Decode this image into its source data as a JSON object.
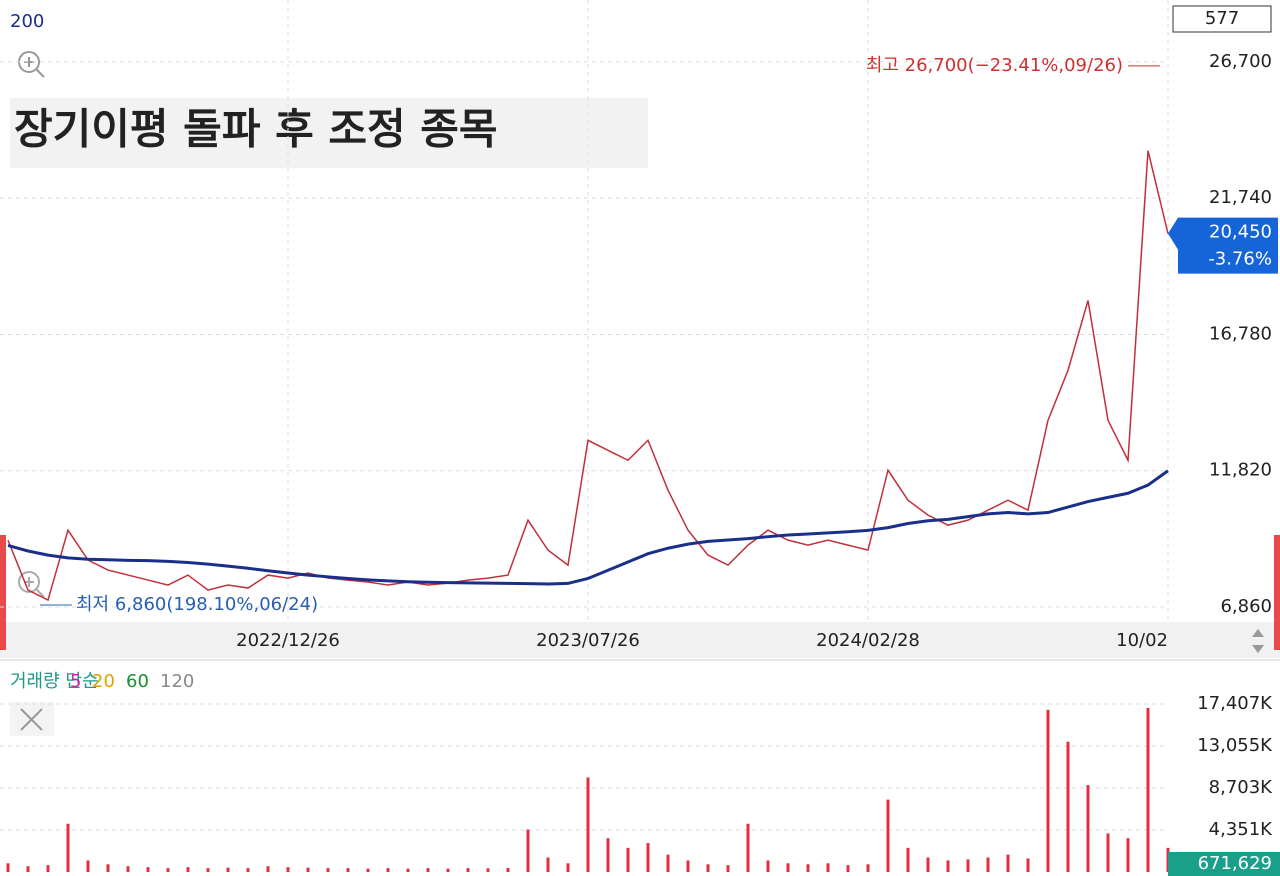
{
  "chart_data": [
    {
      "type": "line",
      "title": "장기이평 돌파 후  조정 종목",
      "categories": [
        null,
        null,
        null,
        null,
        null,
        null,
        null,
        null,
        null,
        null,
        null,
        null,
        null,
        null,
        "2022/12/26",
        null,
        null,
        null,
        null,
        null,
        null,
        null,
        null,
        null,
        null,
        null,
        null,
        null,
        null,
        "2023/07/26",
        null,
        null,
        null,
        null,
        null,
        null,
        null,
        null,
        null,
        null,
        null,
        null,
        null,
        "2024/02/28",
        null,
        null,
        null,
        null,
        null,
        null,
        null,
        null,
        null,
        null,
        null,
        null,
        null,
        null,
        "10/02"
      ],
      "series": [
        {
          "color": "#c0303a",
          "values": [
            9295,
            7478,
            7114,
            9658,
            8568,
            8205,
            8023,
            7841,
            7660,
            8023,
            7478,
            7660,
            7551,
            8023,
            7914,
            8096,
            7914,
            7841,
            7769,
            7660,
            7769,
            7660,
            7732,
            7841,
            7914,
            8023,
            10022,
            8931,
            8386,
            12929,
            12565,
            12202,
            12929,
            11112,
            9658,
            8750,
            8386,
            9113,
            9658,
            9295,
            9113,
            9295,
            9113,
            8931,
            11839,
            10749,
            10204,
            9840,
            10022,
            10385,
            10749,
            10385,
            13656,
            15473,
            18016,
            13656,
            12202,
            23467,
            20450
          ]
        },
        {
          "name": "200",
          "color": "#1a2f8a",
          "values": [
            9100,
            8900,
            8750,
            8650,
            8600,
            8580,
            8560,
            8550,
            8520,
            8480,
            8420,
            8350,
            8270,
            8180,
            8100,
            8020,
            7960,
            7900,
            7850,
            7810,
            7780,
            7760,
            7750,
            7740,
            7730,
            7720,
            7710,
            7700,
            7720,
            7900,
            8200,
            8500,
            8800,
            9000,
            9150,
            9250,
            9300,
            9350,
            9420,
            9480,
            9520,
            9560,
            9600,
            9650,
            9750,
            9900,
            10000,
            10050,
            10150,
            10250,
            10300,
            10250,
            10300,
            10500,
            10700,
            10850,
            11000,
            11300,
            11820
          ]
        }
      ],
      "ylim": [
        6388,
        28953
      ],
      "yticks": [
        {
          "value": 6860,
          "label": "6,860"
        },
        {
          "value": 11820,
          "label": "11,820"
        },
        {
          "value": 16780,
          "label": "16,780"
        },
        {
          "value": 21740,
          "label": "21,740"
        },
        {
          "value": 26700,
          "label": "26,700"
        }
      ],
      "grid": true,
      "max_label": "최고 26,700(−23.41%,09/26)",
      "min_label": "최저 6,860(198.10%,06/24)",
      "max_value": 26700,
      "min_value": 6860,
      "box_label": "577",
      "last_price": {
        "value": 20450,
        "label": "20,450"
      },
      "last_change": "-3.76%"
    },
    {
      "type": "bar",
      "title": "거래량 단순",
      "ma_periods": [
        {
          "value": 5,
          "color": "#d020b0"
        },
        {
          "value": 20,
          "color": "#e0a000"
        },
        {
          "value": 60,
          "color": "#189030"
        },
        {
          "value": 120,
          "color": "#888888"
        }
      ],
      "values": [
        900,
        600,
        700,
        5000,
        1200,
        800,
        600,
        500,
        400,
        500,
        400,
        450,
        400,
        600,
        500,
        450,
        400,
        400,
        350,
        400,
        350,
        400,
        350,
        400,
        380,
        420,
        4400,
        1500,
        900,
        9800,
        3500,
        2500,
        3000,
        1800,
        1200,
        800,
        700,
        5000,
        1200,
        900,
        800,
        900,
        700,
        800,
        7500,
        2500,
        1500,
        1200,
        1300,
        1500,
        1800,
        1400,
        16800,
        13500,
        9000,
        4000,
        3500,
        17000,
        2500
      ],
      "color": "#e03040",
      "ylim": [
        0,
        19895
      ],
      "yticks": [
        {
          "value": 4351,
          "label": "4,351K"
        },
        {
          "value": 8703,
          "label": "8,703K"
        },
        {
          "value": 13055,
          "label": "13,055K"
        },
        {
          "value": 17407,
          "label": "17,407K"
        }
      ],
      "grid": true,
      "last_volume": "671,629"
    }
  ]
}
